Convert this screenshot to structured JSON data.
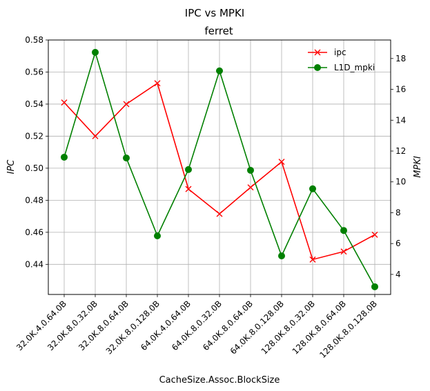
{
  "chart_data": {
    "type": "line",
    "suptitle": "IPC vs MPKI",
    "title": "ferret",
    "xlabel": "CacheSize.Assoc.BlockSize",
    "ylabel_left": "IPC",
    "ylabel_right": "MPKI",
    "categories": [
      "32.0K.4.0.64.0B",
      "32.0K.8.0.32.0B",
      "32.0K.8.0.64.0B",
      "32.0K.8.0.128.0B",
      "64.0K.4.0.64.0B",
      "64.0K.8.0.32.0B",
      "64.0K.8.0.64.0B",
      "64.0K.8.0.128.0B",
      "128.0K.8.0.32.0B",
      "128.0K.8.0.64.0B",
      "128.0K.8.0.128.0B"
    ],
    "ylim_left": [
      0.4212,
      0.58
    ],
    "ylim_right": [
      2.7,
      19.2
    ],
    "yticks_left": [
      "0.44",
      "0.46",
      "0.48",
      "0.50",
      "0.52",
      "0.54",
      "0.56",
      "0.58"
    ],
    "yticks_right": [
      "4",
      "6",
      "8",
      "10",
      "12",
      "14",
      "16",
      "18"
    ],
    "grid": true,
    "legend_position": "top-right",
    "series": [
      {
        "name": "ipc",
        "axis": "left",
        "color": "#ff0000",
        "marker": "x",
        "values": [
          0.541,
          0.52,
          0.54,
          0.553,
          0.487,
          0.4715,
          0.488,
          0.504,
          0.443,
          0.448,
          0.4585
        ]
      },
      {
        "name": "L1D_mpki",
        "axis": "right",
        "color": "#008000",
        "marker": "o",
        "values": [
          11.6,
          18.4,
          11.55,
          6.5,
          10.8,
          17.2,
          10.75,
          5.2,
          9.55,
          6.85,
          3.2
        ]
      }
    ]
  }
}
